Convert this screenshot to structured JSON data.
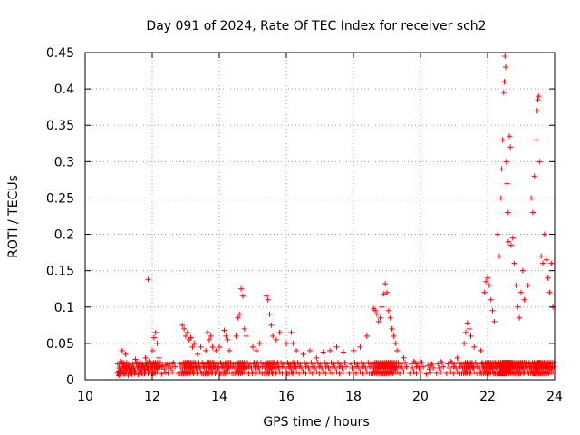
{
  "chart_data": {
    "type": "scatter",
    "title": "Day 091 of 2024, Rate Of TEC Index for receiver sch2",
    "xlabel": "GPS time / hours",
    "ylabel": "ROTI / TECUs",
    "xlim": [
      10,
      24
    ],
    "ylim": [
      0,
      0.45
    ],
    "grid": true,
    "marker": "+",
    "marker_color": "#ff0000",
    "x_ticks": [
      "10",
      "12",
      "14",
      "16",
      "18",
      "20",
      "22",
      "24"
    ],
    "y_ticks": [
      "0",
      "0.05",
      "0.1",
      "0.15",
      "0.2",
      "0.25",
      "0.3",
      "0.35",
      "0.4",
      "0.45"
    ],
    "series": [
      {
        "name": "ROTI",
        "points": [
          [
            11.0,
            0.012
          ],
          [
            11.05,
            0.025
          ],
          [
            11.1,
            0.04
          ],
          [
            11.15,
            0.018
          ],
          [
            11.2,
            0.035
          ],
          [
            11.3,
            0.02
          ],
          [
            11.4,
            0.015
          ],
          [
            11.5,
            0.028
          ],
          [
            11.6,
            0.022
          ],
          [
            11.7,
            0.018
          ],
          [
            11.8,
            0.03
          ],
          [
            11.9,
            0.025
          ],
          [
            11.88,
            0.138
          ],
          [
            12.0,
            0.04
          ],
          [
            12.05,
            0.058
          ],
          [
            12.1,
            0.065
          ],
          [
            12.15,
            0.05
          ],
          [
            12.2,
            0.03
          ],
          [
            12.4,
            0.02
          ],
          [
            12.6,
            0.022
          ],
          [
            12.9,
            0.075
          ],
          [
            12.95,
            0.07
          ],
          [
            13.0,
            0.06
          ],
          [
            13.05,
            0.065
          ],
          [
            13.1,
            0.055
          ],
          [
            13.15,
            0.058
          ],
          [
            13.2,
            0.045
          ],
          [
            13.25,
            0.05
          ],
          [
            13.35,
            0.035
          ],
          [
            13.45,
            0.045
          ],
          [
            13.6,
            0.04
          ],
          [
            13.65,
            0.065
          ],
          [
            13.7,
            0.055
          ],
          [
            13.75,
            0.06
          ],
          [
            13.8,
            0.045
          ],
          [
            13.9,
            0.04
          ],
          [
            14.0,
            0.045
          ],
          [
            14.15,
            0.068
          ],
          [
            14.2,
            0.06
          ],
          [
            14.25,
            0.055
          ],
          [
            14.3,
            0.04
          ],
          [
            14.5,
            0.06
          ],
          [
            14.55,
            0.085
          ],
          [
            14.6,
            0.09
          ],
          [
            14.65,
            0.125
          ],
          [
            14.7,
            0.115
          ],
          [
            14.75,
            0.07
          ],
          [
            14.8,
            0.06
          ],
          [
            15.0,
            0.045
          ],
          [
            15.1,
            0.04
          ],
          [
            15.2,
            0.05
          ],
          [
            15.4,
            0.115
          ],
          [
            15.45,
            0.11
          ],
          [
            15.5,
            0.09
          ],
          [
            15.55,
            0.075
          ],
          [
            15.6,
            0.06
          ],
          [
            15.7,
            0.055
          ],
          [
            15.8,
            0.065
          ],
          [
            16.0,
            0.05
          ],
          [
            16.15,
            0.065
          ],
          [
            16.2,
            0.05
          ],
          [
            16.3,
            0.04
          ],
          [
            16.5,
            0.035
          ],
          [
            16.7,
            0.04
          ],
          [
            16.9,
            0.03
          ],
          [
            17.1,
            0.038
          ],
          [
            17.3,
            0.04
          ],
          [
            17.5,
            0.045
          ],
          [
            17.7,
            0.038
          ],
          [
            18.0,
            0.04
          ],
          [
            18.2,
            0.045
          ],
          [
            18.4,
            0.06
          ],
          [
            18.6,
            0.098
          ],
          [
            18.65,
            0.095
          ],
          [
            18.7,
            0.09
          ],
          [
            18.75,
            0.08
          ],
          [
            18.8,
            0.085
          ],
          [
            18.85,
            0.1
          ],
          [
            18.9,
            0.118
          ],
          [
            18.95,
            0.132
          ],
          [
            19.0,
            0.12
          ],
          [
            19.05,
            0.095
          ],
          [
            19.1,
            0.085
          ],
          [
            19.15,
            0.07
          ],
          [
            19.2,
            0.06
          ],
          [
            19.25,
            0.05
          ],
          [
            19.3,
            0.04
          ],
          [
            19.5,
            0.03
          ],
          [
            19.8,
            0.025
          ],
          [
            20.0,
            0.025
          ],
          [
            20.3,
            0.02
          ],
          [
            20.6,
            0.025
          ],
          [
            20.9,
            0.025
          ],
          [
            21.1,
            0.03
          ],
          [
            21.3,
            0.05
          ],
          [
            21.35,
            0.065
          ],
          [
            21.4,
            0.078
          ],
          [
            21.45,
            0.07
          ],
          [
            21.5,
            0.06
          ],
          [
            21.6,
            0.045
          ],
          [
            21.8,
            0.04
          ],
          [
            21.9,
            0.12
          ],
          [
            21.95,
            0.135
          ],
          [
            22.0,
            0.14
          ],
          [
            22.05,
            0.13
          ],
          [
            22.1,
            0.11
          ],
          [
            22.15,
            0.095
          ],
          [
            22.2,
            0.08
          ],
          [
            22.3,
            0.2
          ],
          [
            22.35,
            0.17
          ],
          [
            22.4,
            0.25
          ],
          [
            22.42,
            0.29
          ],
          [
            22.45,
            0.33
          ],
          [
            22.48,
            0.395
          ],
          [
            22.5,
            0.41
          ],
          [
            22.52,
            0.445
          ],
          [
            22.54,
            0.43
          ],
          [
            22.56,
            0.3
          ],
          [
            22.58,
            0.27
          ],
          [
            22.6,
            0.23
          ],
          [
            22.62,
            0.19
          ],
          [
            22.65,
            0.335
          ],
          [
            22.68,
            0.32
          ],
          [
            22.7,
            0.185
          ],
          [
            22.75,
            0.195
          ],
          [
            22.8,
            0.16
          ],
          [
            22.85,
            0.13
          ],
          [
            22.9,
            0.1
          ],
          [
            22.95,
            0.085
          ],
          [
            23.0,
            0.12
          ],
          [
            23.05,
            0.15
          ],
          [
            23.1,
            0.11
          ],
          [
            23.2,
            0.13
          ],
          [
            23.3,
            0.25
          ],
          [
            23.35,
            0.23
          ],
          [
            23.4,
            0.28
          ],
          [
            23.45,
            0.33
          ],
          [
            23.48,
            0.37
          ],
          [
            23.5,
            0.385
          ],
          [
            23.52,
            0.39
          ],
          [
            23.55,
            0.3
          ],
          [
            23.6,
            0.17
          ],
          [
            23.65,
            0.16
          ],
          [
            23.7,
            0.2
          ],
          [
            23.75,
            0.165
          ],
          [
            23.8,
            0.14
          ],
          [
            23.85,
            0.12
          ],
          [
            23.9,
            0.16
          ],
          [
            23.95,
            0.1
          ]
        ]
      }
    ]
  }
}
